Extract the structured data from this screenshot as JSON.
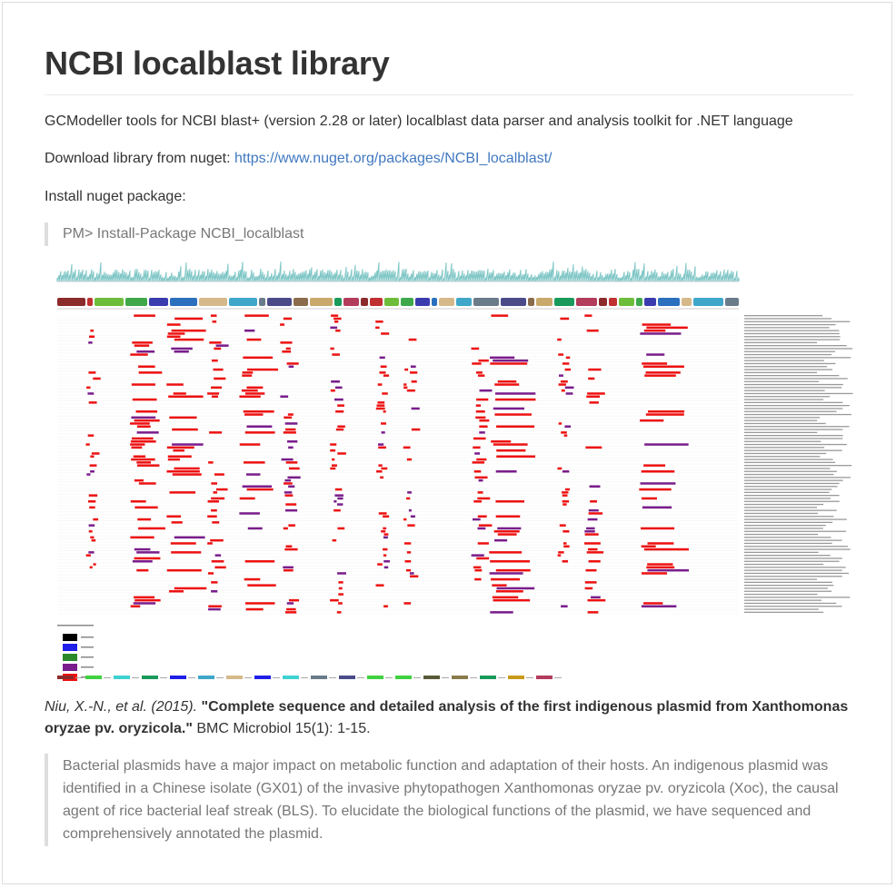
{
  "title": "NCBI localblast library",
  "description": "GCModeller tools for NCBI blast+ (version 2.28 or later) localblast data parser and analysis toolkit for .NET language",
  "download": {
    "prefix": "Download library from nuget: ",
    "url": "https://www.nuget.org/packages/NCBI_localblast/"
  },
  "install_label": "Install nuget package:",
  "install_command": "PM> Install-Package NCBI_localblast",
  "figure": {
    "alt": "BLAST alignment map of plasmid genes against reference genomes",
    "colors": {
      "hit_high": "#ee1111",
      "hit_mid": "#7a1d8c",
      "gc_track": "#7fc6c6",
      "gene_track": [
        "#8b2b2b",
        "#c03030",
        "#6dbd3a",
        "#3fa84a",
        "#3b3bb0",
        "#2b6fbf",
        "#d6b98a",
        "#3fa7c9",
        "#6a7b8a",
        "#4b4b8a",
        "#8a6b4b",
        "#c9a96b",
        "#1a9a5a",
        "#b33b5b"
      ]
    }
  },
  "citation": {
    "authors": "Niu, X.-N., et al. (2015).",
    "title": "\"Complete sequence and detailed analysis of the first indigenous plasmid from Xanthomonas oryzae pv. oryzicola.\"",
    "journal": "BMC Microbiol 15(1): 1-15."
  },
  "abstract": "Bacterial plasmids have a major impact on metabolic function and adaptation of their hosts. An indigenous plasmid was identified in a Chinese isolate (GX01) of the invasive phytopathogen Xanthomonas oryzae pv. oryzicola (Xoc), the causal agent of rice bacterial leaf streak (BLS). To elucidate the biological functions of the plasmid, we have sequenced and comprehensively annotated the plasmid."
}
